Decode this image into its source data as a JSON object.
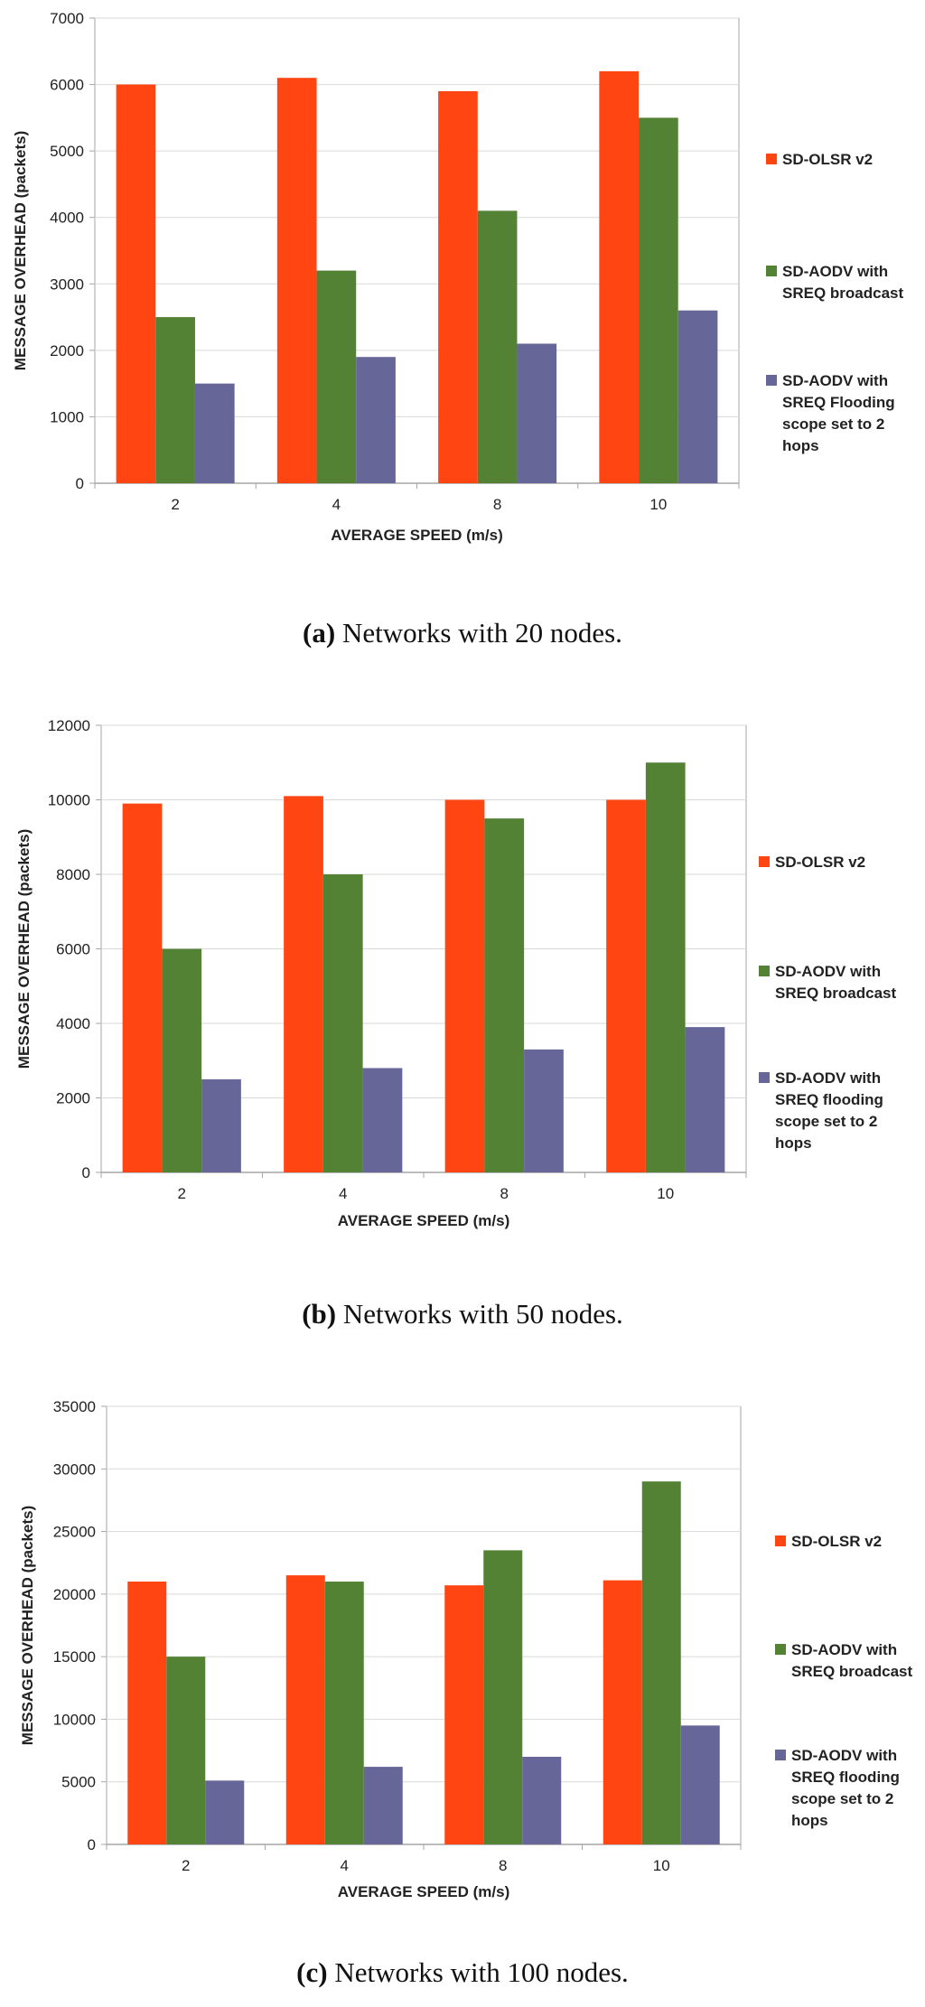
{
  "colors": {
    "sd_olsr": "#ff4512",
    "sd_aodv_broadcast": "#548235",
    "sd_aodv_flooding": "#666699",
    "grid": "#d9d9d9",
    "axis": "#a6a6a6"
  },
  "chart_data": [
    {
      "type": "bar",
      "title": "",
      "caption_label": "(a)",
      "caption_text": " Networks with 20 nodes.",
      "xlabel": "AVERAGE SPEED (m/s)",
      "ylabel": "MESSAGE OVERHEAD (packets)",
      "categories": [
        "2",
        "4",
        "8",
        "10"
      ],
      "ylim": [
        0,
        7000
      ],
      "yticks": [
        0,
        1000,
        2000,
        3000,
        4000,
        5000,
        6000,
        7000
      ],
      "grid": true,
      "legend_position": "right",
      "series": [
        {
          "name": "SD-OLSR v2",
          "legend_lines": [
            "SD-OLSR v2"
          ],
          "color_key": "sd_olsr",
          "values": [
            6000,
            6100,
            5900,
            6200
          ]
        },
        {
          "name": "SD-AODV with SREQ broadcast",
          "legend_lines": [
            "SD-AODV with",
            "SREQ broadcast"
          ],
          "color_key": "sd_aodv_broadcast",
          "values": [
            2500,
            3200,
            4100,
            5500
          ]
        },
        {
          "name": "SD-AODV with SREQ Flooding scope set to 2 hops",
          "legend_lines": [
            "SD-AODV with",
            "SREQ Flooding",
            "scope set to 2",
            "hops"
          ],
          "color_key": "sd_aodv_flooding",
          "values": [
            1500,
            1900,
            2100,
            2600
          ]
        }
      ]
    },
    {
      "type": "bar",
      "title": "",
      "caption_label": "(b)",
      "caption_text": " Networks with 50 nodes.",
      "xlabel": "AVERAGE SPEED (m/s)",
      "ylabel": "MESSAGE OVERHEAD (packets)",
      "categories": [
        "2",
        "4",
        "8",
        "10"
      ],
      "ylim": [
        0,
        12000
      ],
      "yticks": [
        0,
        2000,
        4000,
        6000,
        8000,
        10000,
        12000
      ],
      "grid": true,
      "legend_position": "right",
      "series": [
        {
          "name": "SD-OLSR v2",
          "legend_lines": [
            "SD-OLSR v2"
          ],
          "color_key": "sd_olsr",
          "values": [
            9900,
            10100,
            10000,
            10000
          ]
        },
        {
          "name": "SD-AODV with SREQ broadcast",
          "legend_lines": [
            "SD-AODV with",
            "SREQ broadcast"
          ],
          "color_key": "sd_aodv_broadcast",
          "values": [
            6000,
            8000,
            9500,
            11000
          ]
        },
        {
          "name": "SD-AODV with SREQ flooding scope set to 2 hops",
          "legend_lines": [
            "SD-AODV with",
            "SREQ flooding",
            "scope set to 2",
            "hops"
          ],
          "color_key": "sd_aodv_flooding",
          "values": [
            2500,
            2800,
            3300,
            3900
          ]
        }
      ]
    },
    {
      "type": "bar",
      "title": "",
      "caption_label": "(c)",
      "caption_text": " Networks with 100 nodes.",
      "xlabel": "AVERAGE SPEED (m/s)",
      "ylabel": "MESSAGE OVERHEAD (packets)",
      "categories": [
        "2",
        "4",
        "8",
        "10"
      ],
      "ylim": [
        0,
        35000
      ],
      "yticks": [
        0,
        5000,
        10000,
        15000,
        20000,
        25000,
        30000,
        35000
      ],
      "grid": true,
      "legend_position": "right",
      "series": [
        {
          "name": "SD-OLSR v2",
          "legend_lines": [
            "SD-OLSR v2"
          ],
          "color_key": "sd_olsr",
          "values": [
            21000,
            21500,
            20700,
            21100
          ]
        },
        {
          "name": "SD-AODV with SREQ broadcast",
          "legend_lines": [
            "SD-AODV with",
            "SREQ broadcast"
          ],
          "color_key": "sd_aodv_broadcast",
          "values": [
            15000,
            21000,
            23500,
            29000
          ]
        },
        {
          "name": "SD-AODV with SREQ flooding scope set to 2 hops",
          "legend_lines": [
            "SD-AODV with",
            "SREQ flooding",
            "scope set to 2",
            "hops"
          ],
          "color_key": "sd_aodv_flooding",
          "values": [
            5100,
            6200,
            7000,
            9500
          ]
        }
      ]
    }
  ]
}
